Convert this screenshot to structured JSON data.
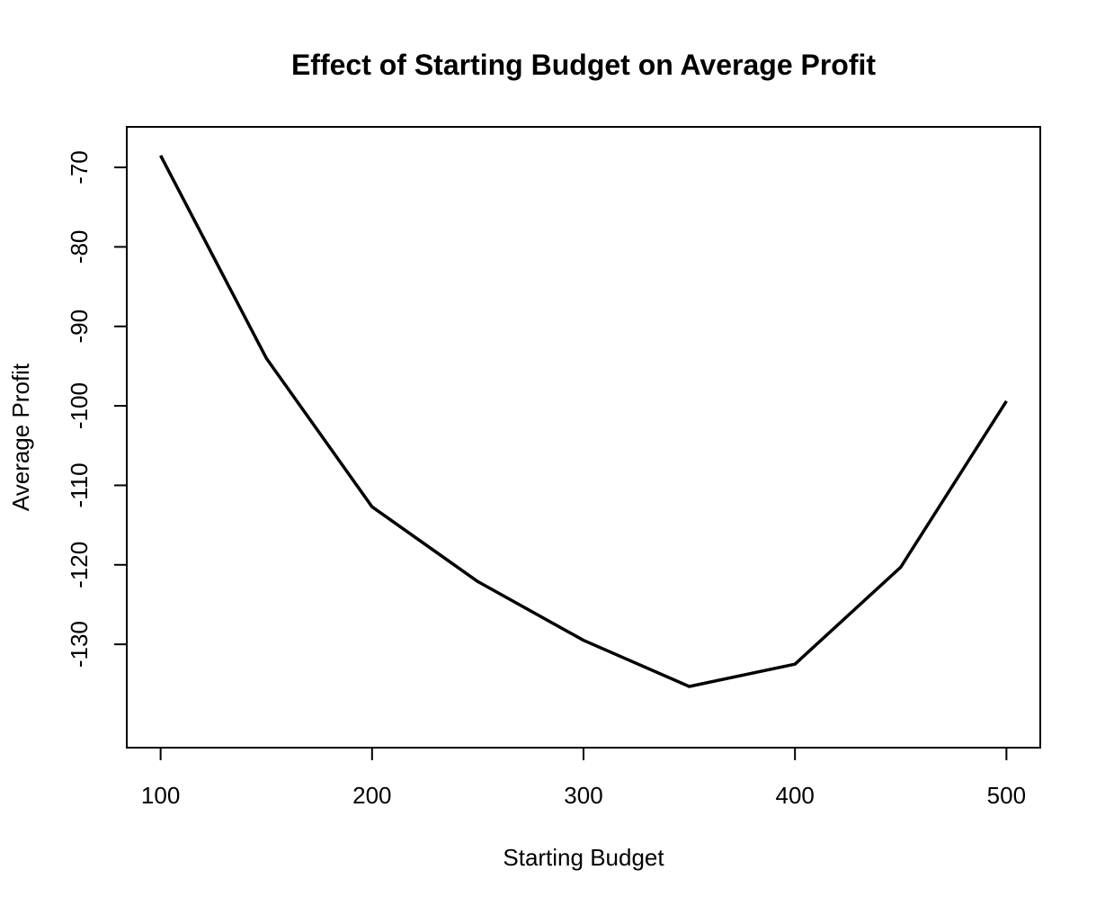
{
  "chart_data": {
    "type": "line",
    "title": "Effect of Starting Budget on Average Profit",
    "xlabel": "Starting Budget",
    "ylabel": "Average Profit",
    "x": [
      100,
      150,
      200,
      250,
      300,
      350,
      400,
      450,
      500
    ],
    "y": [
      -68.5,
      -94.0,
      -112.7,
      -122.1,
      -129.5,
      -135.3,
      -132.5,
      -120.3,
      -99.4
    ],
    "x_ticks": [
      "100",
      "200",
      "300",
      "400",
      "500"
    ],
    "y_ticks": [
      "-70",
      "-80",
      "-90",
      "-100",
      "-110",
      "-120",
      "-130"
    ],
    "xlim": [
      84,
      516
    ],
    "ylim": [
      -143,
      -64.9
    ],
    "grid": false,
    "line_color": "#000000"
  }
}
